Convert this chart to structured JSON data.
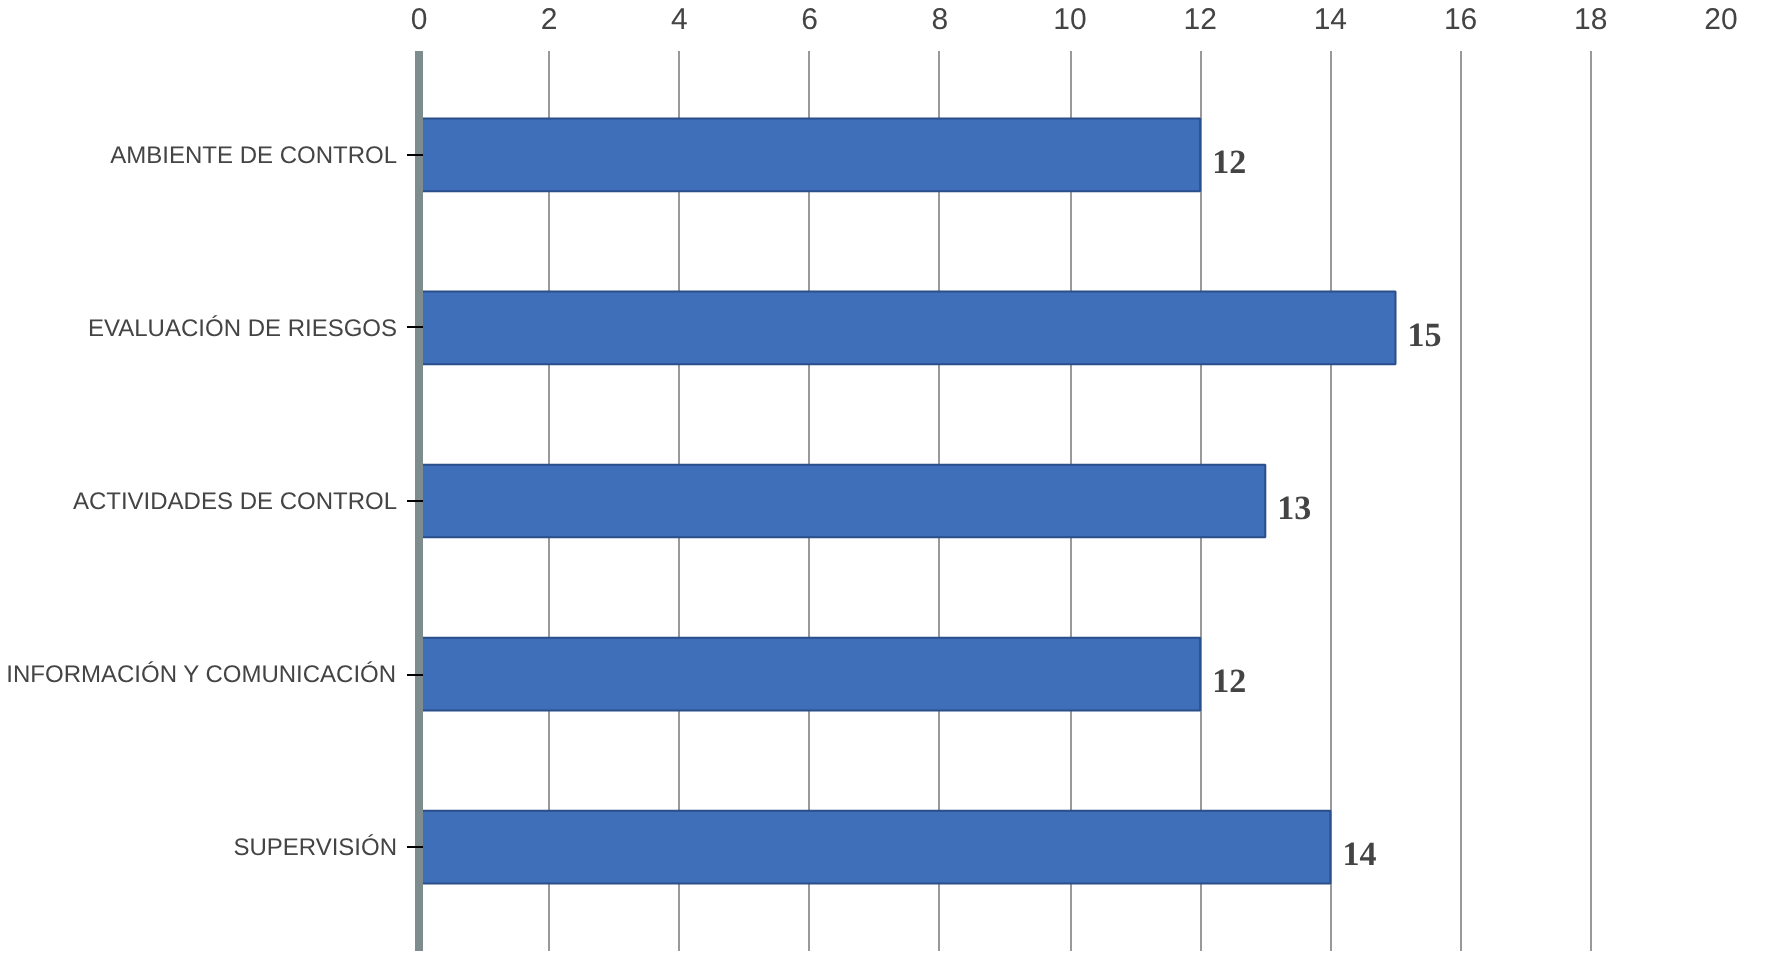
{
  "chart_data": {
    "type": "bar",
    "orientation": "horizontal",
    "categories": [
      "AMBIENTE DE CONTROL",
      "EVALUACIÓN DE RIESGOS",
      "ACTIVIDADES DE CONTROL",
      "INFORMACIÓN Y COMUNICACIÓN",
      "SUPERVISIÓN"
    ],
    "values": [
      12,
      15,
      13,
      12,
      14
    ],
    "color": "#3f6fb8",
    "xlim": [
      0,
      20
    ],
    "xticks": [
      0,
      2,
      4,
      6,
      8,
      10,
      12,
      14,
      16,
      18,
      20
    ],
    "grid": "x",
    "data_labels": true
  }
}
